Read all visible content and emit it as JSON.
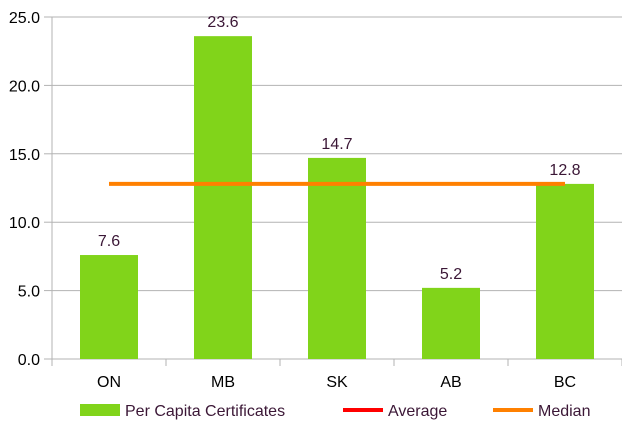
{
  "chart_data": {
    "type": "bar",
    "categories": [
      "ON",
      "MB",
      "SK",
      "AB",
      "BC"
    ],
    "series": [
      {
        "name": "Per Capita Certificates",
        "values": [
          7.6,
          23.6,
          14.7,
          5.2,
          12.8
        ],
        "color": "#81d41a"
      }
    ],
    "reference_lines": [
      {
        "name": "Average",
        "value": null,
        "color": "#ff0000"
      },
      {
        "name": "Median",
        "value": 12.8,
        "color": "#ff8000"
      }
    ],
    "data_labels": [
      "7.6",
      "23.6",
      "14.7",
      "5.2",
      "12.8"
    ],
    "y_ticks": [
      "0.0",
      "5.0",
      "10.0",
      "15.0",
      "20.0",
      "25.0"
    ],
    "ylim": [
      0,
      25
    ],
    "grid": true,
    "legend_position": "bottom",
    "title": "",
    "xlabel": "",
    "ylabel": ""
  }
}
